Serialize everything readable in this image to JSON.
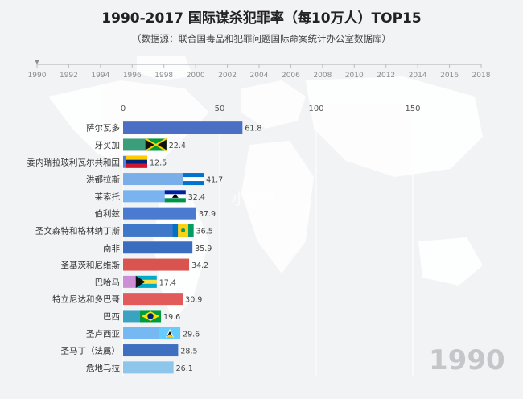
{
  "chart_data": {
    "type": "bar",
    "orientation": "horizontal",
    "title": "1990-2017 国际谋杀犯罪率（每10万人）TOP15",
    "subtitle": "（数据源：联合国毒品和犯罪问题国际命案统计办公室数据库）",
    "timeline": {
      "years": [
        "1990",
        "1992",
        "1994",
        "1996",
        "1998",
        "2000",
        "2002",
        "2004",
        "2006",
        "2008",
        "2010",
        "2012",
        "2014",
        "2016",
        "2018"
      ],
      "current": "1990"
    },
    "current_year": "1990",
    "x_ticks": [
      "0",
      "50",
      "100",
      "150"
    ],
    "xlim": [
      0,
      200
    ],
    "grid": true,
    "bars": [
      {
        "label": "萨尔瓦多",
        "value": 61.8,
        "value_label": "61.8",
        "color": "#4a6fc4",
        "flag": "none"
      },
      {
        "label": "牙买加",
        "value": 22.4,
        "value_label": "22.4",
        "color": "#3a9e7a",
        "flag": "jamaica"
      },
      {
        "label": "委内瑞拉玻利瓦尔共和国",
        "value": 12.5,
        "value_label": "12.5",
        "color": "#5b7fd6",
        "flag": "venezuela"
      },
      {
        "label": "洪都拉斯",
        "value": 41.7,
        "value_label": "41.7",
        "color": "#7aaee8",
        "flag": "honduras"
      },
      {
        "label": "莱索托",
        "value": 32.4,
        "value_label": "32.4",
        "color": "#7ab4f0",
        "flag": "lesotho"
      },
      {
        "label": "伯利兹",
        "value": 37.9,
        "value_label": "37.9",
        "color": "#4a7bd0",
        "flag": "none"
      },
      {
        "label": "圣文森特和格林纳丁斯",
        "value": 36.5,
        "value_label": "36.5",
        "color": "#3f78c9",
        "flag": "svg"
      },
      {
        "label": "南非",
        "value": 35.9,
        "value_label": "35.9",
        "color": "#3a6cc0",
        "flag": "none"
      },
      {
        "label": "圣基茨和尼维斯",
        "value": 34.2,
        "value_label": "34.2",
        "color": "#d9534f",
        "flag": "none"
      },
      {
        "label": "巴哈马",
        "value": 17.4,
        "value_label": "17.4",
        "color": "#cc8fd6",
        "flag": "bahamas"
      },
      {
        "label": "特立尼达和多巴哥",
        "value": 30.9,
        "value_label": "30.9",
        "color": "#e35a5a",
        "flag": "none"
      },
      {
        "label": "巴西",
        "value": 19.6,
        "value_label": "19.6",
        "color": "#3aa3c2",
        "flag": "brazil"
      },
      {
        "label": "圣卢西亚",
        "value": 29.6,
        "value_label": "29.6",
        "color": "#76b9f2",
        "flag": "stlucia"
      },
      {
        "label": "圣马丁（法属）",
        "value": 28.5,
        "value_label": "28.5",
        "color": "#3f6fbf",
        "flag": "none"
      },
      {
        "label": "危地马拉",
        "value": 26.1,
        "value_label": "26.1",
        "color": "#8ec5ea",
        "flag": "none"
      }
    ]
  }
}
